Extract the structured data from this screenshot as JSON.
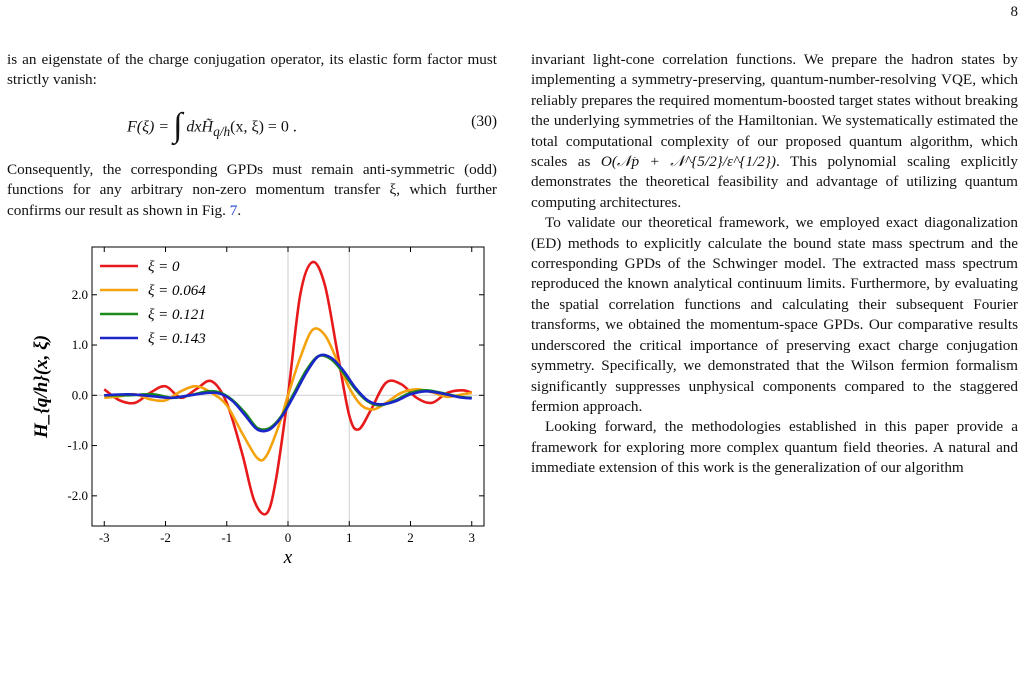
{
  "page": {
    "number": "8"
  },
  "left_column": {
    "para1": "is an eigenstate of the charge conjugation operator, its elastic form factor must strictly vanish:",
    "equation": {
      "lhs": "F(ξ) =",
      "integral": "∫",
      "body": "dx",
      "H": "H̃",
      "sub": "q/h",
      "args": "(x, ξ) = 0 .",
      "number": "(30)"
    },
    "para2_before": "Consequently, the corresponding GPDs must remain anti-symmetric (odd) functions for any arbitrary non-zero momentum transfer ξ, which further confirms our result as shown in Fig. ",
    "para2_link": "7",
    "para2_after": "."
  },
  "right_column": {
    "para1": "invariant light-cone correlation functions. We prepare the hadron states by implementing a symmetry-preserving, quantum-number-resolving VQE, which reliably prepares the required momentum-boosted target states without breaking the underlying symmetries of the Hamiltonian. We systematically estimated the total computational complexity of our proposed quantum algorithm, which scales as ",
    "complexity": "O(𝒩p + 𝒩^{5/2}/ε^{1/2})",
    "para1_after": ". This polynomial scaling explicitly demonstrates the theoretical feasibility and advantage of utilizing quantum computing architectures.",
    "para2": "To validate our theoretical framework, we employed exact diagonalization (ED) methods to explicitly calculate the bound state mass spectrum and the corresponding GPDs of the Schwinger model. The extracted mass spectrum reproduced the known analytical continuum limits. Furthermore, by evaluating the spatial correlation functions and calculating their subsequent Fourier transforms, we obtained the momentum-space GPDs. Our comparative results underscored the critical importance of preserving exact charge conjugation symmetry. Specifically, we demonstrated that the Wilson fermion formalism significantly suppresses unphysical components compared to the staggered fermion approach.",
    "para3": "Looking forward, the methodologies established in this paper provide a framework for exploring more complex quantum field theories. A natural and immediate extension of this work is the generalization of our algorithm"
  },
  "chart_data": {
    "type": "line",
    "xlabel": "x",
    "ylabel": "H_{q/h}(x, ξ)",
    "xlim": [
      -3.2,
      3.2
    ],
    "ylim": [
      -2.6,
      2.95
    ],
    "xticks": [
      -3,
      -2,
      -1,
      0,
      1,
      2,
      3
    ],
    "xtick_labels": [
      "-3",
      "-2",
      "-1",
      "0",
      "1",
      "2",
      "3"
    ],
    "yticks": [
      -2,
      -1,
      0,
      1,
      2
    ],
    "ytick_labels": [
      "-2.0",
      "-1.0",
      "0.0",
      "1.0",
      "2.0"
    ],
    "reference_lines": {
      "horizontal": [
        0
      ],
      "vertical": [
        0,
        1
      ]
    },
    "legend_position": "top-left",
    "series": [
      {
        "name": "ξ = 0",
        "color": "#e8191b",
        "x": [
          -3.0,
          -2.75,
          -2.5,
          -2.25,
          -2.0,
          -1.75,
          -1.5,
          -1.25,
          -1.0,
          -0.75,
          -0.55,
          -0.35,
          -0.2,
          0.0,
          0.2,
          0.4,
          0.6,
          0.8,
          1.0,
          1.15,
          1.35,
          1.6,
          1.85,
          2.1,
          2.35,
          2.6,
          2.85,
          3.0
        ],
        "y": [
          0.12,
          -0.1,
          -0.15,
          0.05,
          0.18,
          -0.05,
          0.12,
          0.28,
          -0.15,
          -1.15,
          -2.1,
          -2.35,
          -1.7,
          0.0,
          2.0,
          2.65,
          2.2,
          0.9,
          -0.4,
          -0.68,
          -0.3,
          0.25,
          0.22,
          -0.05,
          -0.15,
          0.05,
          0.1,
          0.05
        ]
      },
      {
        "name": "ξ = 0.064",
        "color": "#f4a20e",
        "x": [
          -3.0,
          -2.75,
          -2.5,
          -2.25,
          -2.0,
          -1.75,
          -1.5,
          -1.25,
          -1.0,
          -0.75,
          -0.5,
          -0.35,
          -0.15,
          0.0,
          0.2,
          0.4,
          0.6,
          0.8,
          1.0,
          1.2,
          1.4,
          1.6,
          1.85,
          2.1,
          2.35,
          2.6,
          2.85,
          3.0
        ],
        "y": [
          -0.05,
          -0.02,
          0.02,
          -0.08,
          -0.1,
          0.08,
          0.18,
          0.05,
          -0.2,
          -0.75,
          -1.25,
          -1.2,
          -0.6,
          0.0,
          0.75,
          1.3,
          1.2,
          0.7,
          0.15,
          -0.2,
          -0.28,
          -0.15,
          0.05,
          0.12,
          0.06,
          -0.03,
          0.02,
          0.05
        ]
      },
      {
        "name": "ξ = 0.121",
        "color": "#1a8a1a",
        "x": [
          -3.0,
          -2.6,
          -2.2,
          -1.9,
          -1.6,
          -1.3,
          -1.1,
          -0.9,
          -0.7,
          -0.5,
          -0.3,
          -0.1,
          0.1,
          0.3,
          0.5,
          0.7,
          0.9,
          1.1,
          1.3,
          1.5,
          1.75,
          2.0,
          2.25,
          2.5,
          2.8,
          3.0
        ],
        "y": [
          0.0,
          0.0,
          0.02,
          -0.05,
          0.0,
          0.08,
          0.05,
          -0.1,
          -0.35,
          -0.65,
          -0.65,
          -0.4,
          0.05,
          0.5,
          0.78,
          0.72,
          0.45,
          0.12,
          -0.12,
          -0.2,
          -0.1,
          0.05,
          0.1,
          0.05,
          -0.03,
          -0.05
        ]
      },
      {
        "name": "ξ = 0.143",
        "color": "#1b25c8",
        "x": [
          -3.0,
          -2.6,
          -2.2,
          -1.9,
          -1.6,
          -1.3,
          -1.1,
          -0.9,
          -0.7,
          -0.5,
          -0.3,
          -0.1,
          0.1,
          0.3,
          0.5,
          0.7,
          0.9,
          1.1,
          1.3,
          1.5,
          1.75,
          2.0,
          2.25,
          2.5,
          2.8,
          3.0
        ],
        "y": [
          0.0,
          0.02,
          -0.02,
          -0.05,
          0.0,
          0.05,
          0.03,
          -0.12,
          -0.4,
          -0.68,
          -0.68,
          -0.42,
          0.0,
          0.45,
          0.78,
          0.75,
          0.5,
          0.15,
          -0.1,
          -0.18,
          -0.12,
          0.02,
          0.08,
          0.04,
          -0.04,
          -0.06
        ]
      }
    ]
  }
}
